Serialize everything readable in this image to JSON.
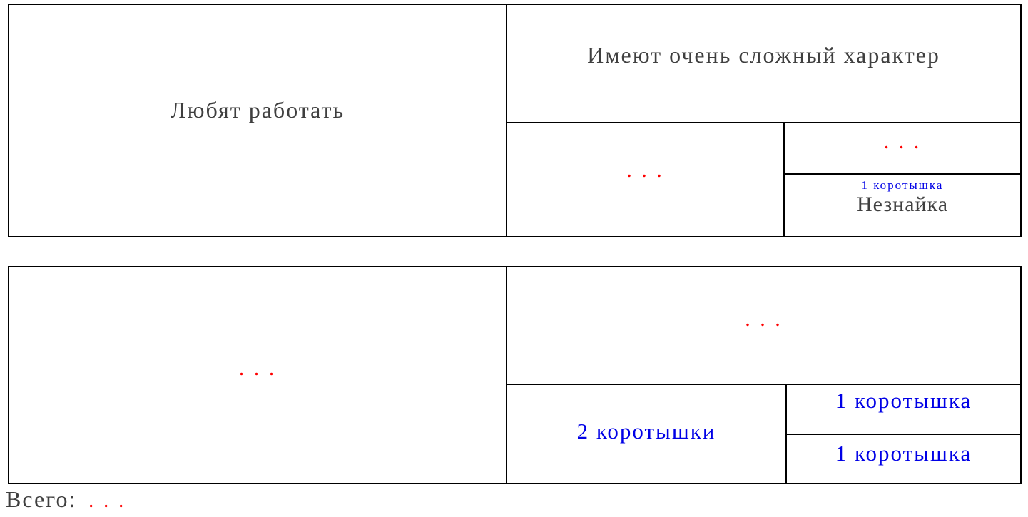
{
  "colors": {
    "border": "#000000",
    "text_dark": "#3f3f3f",
    "blank_red": "#fe0000",
    "answer_blue": "#0000e6",
    "background": "#ffffff"
  },
  "table_top": {
    "left_label": "Любят работать",
    "header_label": "Имеют очень сложный характер",
    "left_blank_dots": ". . .",
    "sub_top_blank_dots": ". . .",
    "sub_count_label": "1 коротышка",
    "sub_name_label": "Незнайка"
  },
  "table_bottom": {
    "left_blank_dots": ". . .",
    "top_blank_dots": ". . .",
    "count_left_label": "2 коротышки",
    "count_top_label": "1 коротышка",
    "count_bottom_label": "1 коротышка"
  },
  "footer": {
    "label": "Всего:",
    "blank_dots": ". . ."
  }
}
